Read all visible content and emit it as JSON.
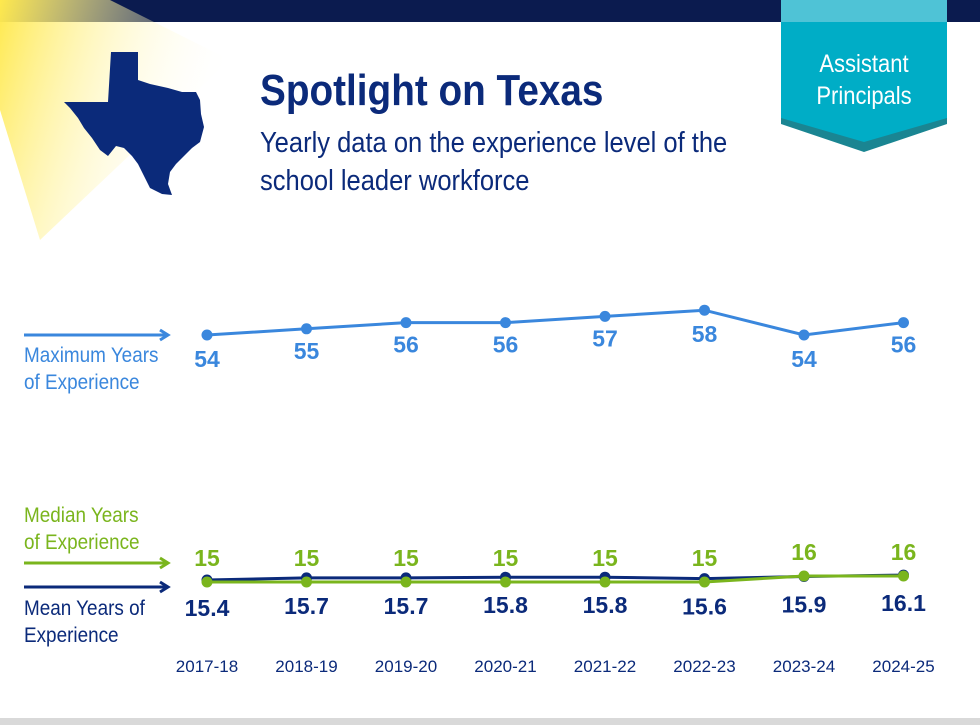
{
  "header": {
    "title": "Spotlight on Texas",
    "subtitle": "Yearly data on the experience level of the school leader workforce",
    "badge": "Assistant Principals"
  },
  "icons": [
    "texas-map-icon",
    "arrow-right-icon"
  ],
  "colors": {
    "navy": "#0b2a7a",
    "max": "#3a87dd",
    "median": "#7ab51d",
    "mean": "#0b2a7a",
    "badge": "#00adc6"
  },
  "chart_data": {
    "type": "line",
    "categories": [
      "2017-18",
      "2018-19",
      "2019-20",
      "2020-21",
      "2021-22",
      "2022-23",
      "2023-24",
      "2024-25"
    ],
    "series": [
      {
        "name": "Maximum Years of Experience",
        "values": [
          54,
          55,
          56,
          56,
          57,
          58,
          54,
          56
        ]
      },
      {
        "name": "Median Years of Experience",
        "values": [
          15,
          15,
          15,
          15,
          15,
          15,
          16,
          16
        ]
      },
      {
        "name": "Mean Years of Experience",
        "values": [
          15.4,
          15.7,
          15.7,
          15.8,
          15.8,
          15.6,
          15.9,
          16.1
        ]
      }
    ],
    "grid": false
  }
}
